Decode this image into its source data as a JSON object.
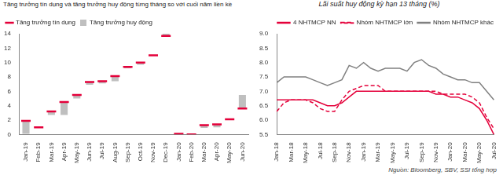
{
  "chart_data": [
    {
      "type": "bar",
      "title": "Tăng trưởng tín dụng và tăng trưởng huy động từng tháng so với cuối năm liền kề",
      "categories": [
        "Jan-19",
        "Feb-19",
        "Mar-19",
        "Apr-19",
        "May-19",
        "Jun-19",
        "Jul-19",
        "Aug-19",
        "Sep-19",
        "Oct-19",
        "Nov-19",
        "Dec-19",
        "Jan-20",
        "Feb-20",
        "Mar-20",
        "Apr-20",
        "May-20",
        "Jun-20"
      ],
      "series": [
        {
          "name": "Tăng trưởng tín dụng",
          "color": "#e4003a",
          "type": "line",
          "marker": "dash",
          "line_style": "none",
          "values": [
            1.9,
            1.0,
            3.2,
            4.5,
            5.5,
            7.3,
            7.4,
            8.1,
            9.4,
            10.0,
            11.0,
            13.7,
            0.1,
            0.0,
            1.3,
            1.4,
            2.1,
            3.6
          ]
        },
        {
          "name": "Tăng trưởng huy động",
          "color": "#bfbfbf",
          "type": "bar",
          "values": [
            0.1,
            0.9,
            2.7,
            2.7,
            5.0,
            6.9,
            7.1,
            7.4,
            9.2,
            9.7,
            11.0,
            14.0,
            0.0,
            0.1,
            0.9,
            1.0,
            2.2,
            5.5
          ]
        }
      ],
      "ylim": [
        0,
        14
      ],
      "yticks": [
        0,
        2,
        4,
        6,
        8,
        10,
        12,
        14
      ],
      "grid": false,
      "legend": "upper left"
    },
    {
      "type": "line",
      "title": "Lãi suất huy động kỳ hạn 13 tháng (%)",
      "categories": [
        "Jan-18",
        null,
        "Mar-18",
        null,
        "May-18",
        null,
        "Jul-18",
        null,
        "Sep-18",
        null,
        "Nov-18",
        null,
        "Jan-19",
        null,
        "Mar-19",
        null,
        "May-19",
        null,
        "Jul-19",
        null,
        "Sep-19",
        null,
        "Nov-19",
        null,
        "Jan-20",
        null,
        "Mar-20",
        null,
        "May-20",
        null,
        "Jul-20"
      ],
      "series": [
        {
          "name": "4 NHTMCP NN",
          "color": "#e4003a",
          "line_style": "solid",
          "marker": "none",
          "values": [
            6.7,
            6.7,
            6.7,
            6.7,
            6.7,
            6.7,
            6.6,
            6.5,
            6.5,
            6.6,
            6.8,
            7.0,
            7.0,
            7.0,
            7.0,
            7.0,
            7.0,
            7.0,
            7.0,
            7.0,
            7.0,
            7.0,
            6.9,
            6.9,
            6.8,
            6.8,
            6.7,
            6.6,
            6.4,
            6.0,
            5.5
          ]
        },
        {
          "name": "Nhóm NHTMCP lớn",
          "color": "#e4003a",
          "line_style": "dashed",
          "marker": "none",
          "values": [
            6.3,
            6.6,
            6.7,
            6.7,
            6.7,
            6.6,
            6.4,
            6.3,
            6.3,
            6.7,
            7.0,
            7.1,
            7.2,
            7.2,
            7.2,
            7.0,
            7.0,
            7.0,
            7.0,
            7.0,
            7.0,
            7.0,
            7.0,
            6.9,
            6.9,
            6.9,
            6.9,
            6.8,
            6.6,
            6.1,
            5.7
          ]
        },
        {
          "name": "Nhóm NHTMCP khác",
          "color": "#808080",
          "line_style": "solid",
          "marker": "none",
          "values": [
            7.3,
            7.5,
            7.5,
            7.5,
            7.5,
            7.4,
            7.3,
            7.2,
            7.3,
            7.4,
            7.9,
            7.8,
            8.0,
            7.8,
            7.7,
            7.8,
            7.8,
            7.8,
            7.7,
            8.0,
            8.1,
            7.9,
            7.8,
            7.6,
            7.5,
            7.4,
            7.4,
            7.3,
            7.3,
            7.0,
            6.7
          ]
        }
      ],
      "ylim": [
        5.5,
        9.0
      ],
      "yticks": [
        5.5,
        {
          "value": 6,
          "label": "6.0"
        },
        6.5,
        {
          "value": 7,
          "label": "7.0"
        },
        7.5,
        {
          "value": 8,
          "label": "8.0"
        },
        8.5,
        {
          "value": 9,
          "label": "9.0"
        }
      ],
      "grid": false,
      "legend": "upper right",
      "source": "Nguồn: Bloomberg, SBV, SSI tổng hợp"
    }
  ]
}
